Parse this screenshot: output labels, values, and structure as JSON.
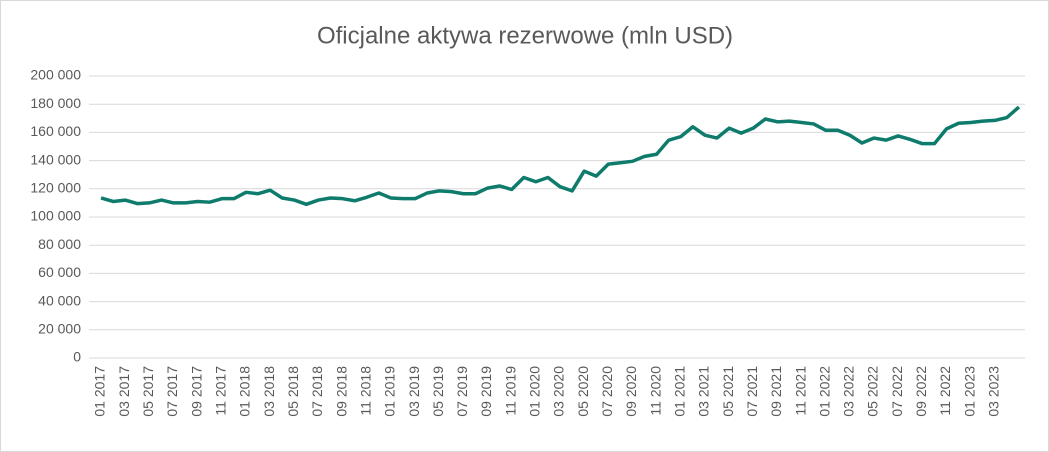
{
  "chart_data": {
    "type": "line",
    "title": "Oficjalne aktywa rezerwowe (mln USD)",
    "categories": [
      "01 2017",
      null,
      "03 2017",
      null,
      "05 2017",
      null,
      "07 2017",
      null,
      "09 2017",
      null,
      "11 2017",
      null,
      "01 2018",
      null,
      "03 2018",
      null,
      "05 2018",
      null,
      "07 2018",
      null,
      "09 2018",
      null,
      "11 2018",
      null,
      "01 2019",
      null,
      "03 2019",
      null,
      "05 2019",
      null,
      "07 2019",
      null,
      "09 2019",
      null,
      "11 2019",
      null,
      "01 2020",
      null,
      "03 2020",
      null,
      "05 2020",
      null,
      "07 2020",
      null,
      "09 2020",
      null,
      "11 2020",
      null,
      "01 2021",
      null,
      "03 2021",
      null,
      "05 2021",
      null,
      "07 2021",
      null,
      "09 2021",
      null,
      "11 2021",
      null,
      "01 2022",
      null,
      "03 2022",
      null,
      "05 2022",
      null,
      "07 2022",
      null,
      "09 2022",
      null,
      "11 2022",
      null,
      "01 2023",
      null,
      "03 2023",
      null,
      null
    ],
    "values": [
      113500,
      111000,
      112000,
      109500,
      110000,
      112000,
      110000,
      110000,
      111000,
      110500,
      113000,
      113000,
      117500,
      116500,
      119000,
      113500,
      112000,
      109000,
      112000,
      113500,
      113000,
      111500,
      114000,
      117000,
      113500,
      113000,
      113000,
      117000,
      118500,
      118000,
      116500,
      116500,
      120500,
      122000,
      119500,
      128000,
      125000,
      128000,
      121500,
      118500,
      132500,
      129000,
      137500,
      138500,
      139500,
      143000,
      144500,
      154500,
      157000,
      164000,
      158000,
      156000,
      163000,
      159500,
      163000,
      169500,
      167500,
      168000,
      167000,
      166000,
      161500,
      161500,
      158000,
      152500,
      156000,
      154500,
      157500,
      155000,
      152000,
      152000,
      162500,
      166500,
      167000,
      168000,
      168500,
      170500,
      178000
    ],
    "color": "#0f7b6c",
    "ylim": [
      0,
      200000
    ],
    "yticks": [
      0,
      {
        "value": 20000,
        "label": "20 000"
      },
      {
        "value": 40000,
        "label": "40 000"
      },
      {
        "value": 60000,
        "label": "60 000"
      },
      {
        "value": 80000,
        "label": "80 000"
      },
      {
        "value": 100000,
        "label": "100 000"
      },
      {
        "value": 120000,
        "label": "120 000"
      },
      {
        "value": 140000,
        "label": "140 000"
      },
      {
        "value": 160000,
        "label": "160 000"
      },
      {
        "value": 180000,
        "label": "180 000"
      },
      {
        "value": 200000,
        "label": "200 000"
      }
    ],
    "grid": true
  }
}
